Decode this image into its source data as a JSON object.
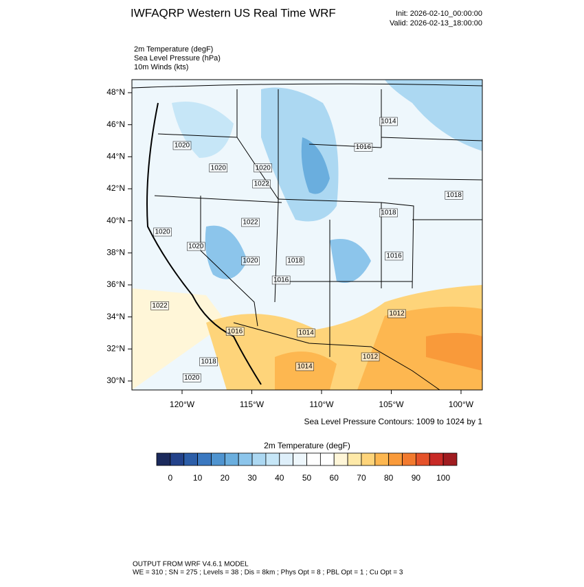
{
  "header": {
    "title": "IWFAQRP Western US Real Time WRF",
    "init": "Init: 2026-02-10_00:00:00",
    "valid": "Valid: 2026-02-13_18:00:00"
  },
  "fields": [
    "2m Temperature   (degF)",
    "Sea Level Pressure   (hPa)",
    "10m Winds   (kts)"
  ],
  "map": {
    "lat_ticks": [
      {
        "value": 48,
        "label": "48°N"
      },
      {
        "value": 46,
        "label": "46°N"
      },
      {
        "value": 44,
        "label": "44°N"
      },
      {
        "value": 42,
        "label": "42°N"
      },
      {
        "value": 40,
        "label": "40°N"
      },
      {
        "value": 38,
        "label": "38°N"
      },
      {
        "value": 36,
        "label": "36°N"
      },
      {
        "value": 34,
        "label": "34°N"
      },
      {
        "value": 32,
        "label": "32°N"
      },
      {
        "value": 30,
        "label": "30°N"
      }
    ],
    "lon_ticks": [
      {
        "value": -120,
        "label": "120°W"
      },
      {
        "value": -115,
        "label": "115°W"
      },
      {
        "value": -110,
        "label": "110°W"
      },
      {
        "value": -105,
        "label": "105°W"
      },
      {
        "value": -100,
        "label": "100°W"
      }
    ],
    "contour_labels": [
      {
        "value": 1014,
        "lon": -105.2,
        "lat": 46.2
      },
      {
        "value": 1020,
        "lon": -120,
        "lat": 44.7
      },
      {
        "value": 1020,
        "lon": -117.4,
        "lat": 43.3
      },
      {
        "value": 1020,
        "lon": -114.2,
        "lat": 43.3
      },
      {
        "value": 1022,
        "lon": -114.3,
        "lat": 42.3
      },
      {
        "value": 1016,
        "lon": -107.0,
        "lat": 44.6
      },
      {
        "value": 1018,
        "lon": -100.5,
        "lat": 41.6
      },
      {
        "value": 1018,
        "lon": -105.2,
        "lat": 40.5
      },
      {
        "value": 1020,
        "lon": -121.4,
        "lat": 39.3
      },
      {
        "value": 1020,
        "lon": -119.0,
        "lat": 38.4
      },
      {
        "value": 1022,
        "lon": -115.1,
        "lat": 39.9
      },
      {
        "value": 1020,
        "lon": -115.1,
        "lat": 37.5
      },
      {
        "value": 1018,
        "lon": -111.9,
        "lat": 37.5
      },
      {
        "value": 1016,
        "lon": -112.9,
        "lat": 36.3
      },
      {
        "value": 1016,
        "lon": -104.8,
        "lat": 37.8
      },
      {
        "value": 1022,
        "lon": -121.6,
        "lat": 34.7
      },
      {
        "value": 1016,
        "lon": -116.2,
        "lat": 33.1
      },
      {
        "value": 1014,
        "lon": -111.1,
        "lat": 33.0
      },
      {
        "value": 1012,
        "lon": -104.6,
        "lat": 34.2
      },
      {
        "value": 1018,
        "lon": -118.1,
        "lat": 31.2
      },
      {
        "value": 1020,
        "lon": -119.3,
        "lat": 30.2
      },
      {
        "value": 1014,
        "lon": -111.2,
        "lat": 30.9
      },
      {
        "value": 1012,
        "lon": -106.5,
        "lat": 31.5
      }
    ],
    "contour_note": "Sea Level Pressure Contours: 1009 to 1024 by 1"
  },
  "colorbar": {
    "title": "2m Temperature  (degF)",
    "lim": [
      -5,
      105
    ],
    "colors": [
      "#1b2a5c",
      "#23428a",
      "#2c5ea8",
      "#3a78c0",
      "#4f94d0",
      "#6aaede",
      "#8cc5eb",
      "#acd8f2",
      "#c6e6f7",
      "#deeffa",
      "#eef7fc",
      "#ffffff",
      "#ffffff",
      "#fff6d8",
      "#fee9a8",
      "#fed47a",
      "#fdb750",
      "#f99a3a",
      "#f27a2e",
      "#e5522a",
      "#c82a26",
      "#a01c20"
    ],
    "ticks": [
      0,
      10,
      20,
      30,
      40,
      50,
      60,
      70,
      80,
      90,
      100
    ]
  },
  "footer": [
    "OUTPUT FROM WRF V4.6.1 MODEL",
    "WE = 310 ; SN = 275 ; Levels = 38 ; Dis = 8km ; Phys Opt = 8 ; PBL Opt = 1 ; Cu Opt = 3"
  ]
}
